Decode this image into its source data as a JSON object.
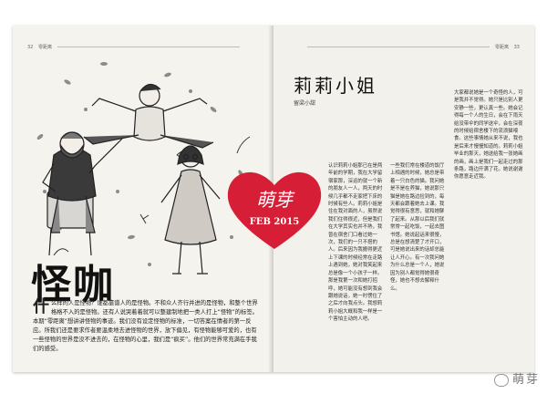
{
  "header": {
    "left_page_no": "32",
    "left_section": "零距离",
    "right_section": "零距离",
    "right_page_no": "33"
  },
  "left": {
    "title": "怪咖",
    "drop_cap": "什",
    "intro": "么样的人是怪物？谁都靠谱人的是怪物。不和众人齐行并进的是怪物，和整个世界格格不入的是怪物。还有人说哭着着就可以整建制地把一类人打上“怪物”的标签。本期“零距离”想讲讲怪物的事迹。我们没有设定怪物的标准，一切答案在情者的第一反应。所我们还是要求作者要温柔地去进怪物的世界，放下偏见，有怪物能够可爱的，也有一些怪物的世界是没不进去的，在怪物的心里，我们是“疯买”。他们的世界常充满在手我们的感受。"
  },
  "heart": {
    "label": "萌芽",
    "date": "FEB 2015"
  },
  "right": {
    "story_title": "莉莉小姐",
    "author": "留梁小甜",
    "col1": "认识莉莉小姐那已在是两年前的学期，我在大学留宿家那，深运的就一个新的朋友人一人，两天的时候几乎都不走家把下床的时候有些人。莉莉小姐是住在我对面的人，虽然说我们住得很近，但是我们在大学其实也并不熟，我曾在宿舍门口看过她一次，我们的一只不搭的人。后来因为我搬得更近上下课的时候经常在走路上遇到她，她对我笑起来总是像一个小孩子一样。那是我第一次和她打招呼，她可能没有想到我会跟她说话，她一时愣住了之后才向我点头。我想莉莉小姐大概和我一样是一个害怕主动的人吧。",
    "col2": "一些我们常在楼道的饭厅上相遇的时候，她总是带着一只白色的猫。我问她是不是在养猫，她说那只猫是她在路边捡到的，每天都会跟着她去上课。我觉得很有意思，就和她聊了起来。从那以后我们就常常一起吃饭，一起去图书馆。她说起话来很慢，总是在想清楚了才开口，可是她说出来的话却总能让人开心。有一次我问她为什么总是一个人，她说因为别人都觉得她很奇怪，她也不想去解释什么。",
    "col3": "大家都说她是一个奇怪的人，可是我并不觉得。她只是比别人更安静一些，更认真一些。她会记得每一个人的生日，会在下雨天给没带伞的同学送伞，会在深夜的时候给宿舍楼下的流浪猫喂食。这些事情她从来不说，我也是后来才慢慢知道的。莉莉小姐毕业的那天，她送给我一张她画的画，画上是我们一起走过的那条路，路边开满了花。她说谢谢你愿意走近我。"
  }
}
